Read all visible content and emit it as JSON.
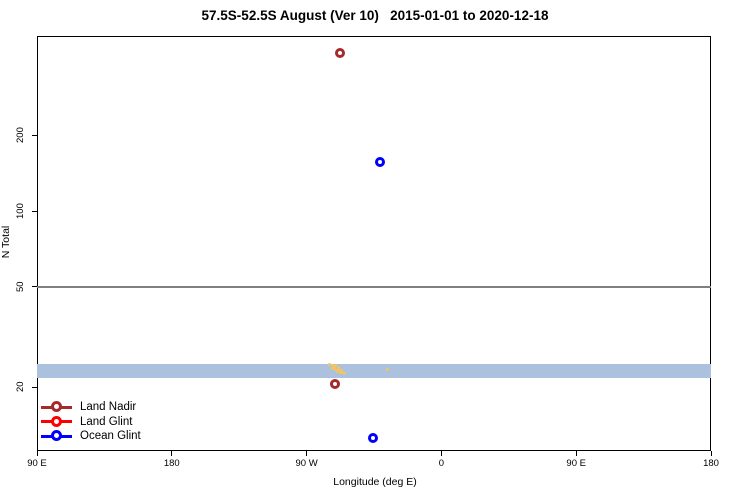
{
  "chart_data": {
    "type": "scatter",
    "title": "57.5S-52.5S August (Ver 10)   2015-01-01 to 2020-12-18",
    "xlabel": "Longitude (deg E)",
    "ylabel": "N Total",
    "x_axis": {
      "lim": [
        90,
        540
      ],
      "ticks": [
        {
          "value": 90,
          "label": "90 E"
        },
        {
          "value": 180,
          "label": "180"
        },
        {
          "value": 270,
          "label": "90 W"
        },
        {
          "value": 360,
          "label": "0"
        },
        {
          "value": 450,
          "label": "90 E"
        },
        {
          "value": 540,
          "label": "180"
        }
      ]
    },
    "y_axis": {
      "scale": "log",
      "lim": [
        11.3,
        494
      ],
      "ticks": [
        {
          "value": 20,
          "label": "20"
        },
        {
          "value": 50,
          "label": "50"
        },
        {
          "value": 100,
          "label": "100"
        },
        {
          "value": 200,
          "label": "200"
        }
      ]
    },
    "reference_line": {
      "y": 50,
      "color": "#7f7f7f"
    },
    "reference_band": {
      "y_min": 21.8,
      "y_max": 24.6,
      "color": "#abc1de"
    },
    "series": [
      {
        "name": "Land Nadir",
        "color": "#a52a2a",
        "symbol": "open-circle",
        "points": [
          {
            "lon": 292.5,
            "n_total": 423
          },
          {
            "lon": 289.0,
            "n_total": 20.5
          }
        ]
      },
      {
        "name": "Land Glint",
        "color": "#ff0000",
        "symbol": "open-circle",
        "points": []
      },
      {
        "name": "Ocean Glint",
        "color": "#0000ff",
        "symbol": "open-circle",
        "points": [
          {
            "lon": 319.0,
            "n_total": 157
          },
          {
            "lon": 314.0,
            "n_total": 12.6
          }
        ]
      }
    ],
    "minor_points": {
      "name": "small-orange-marks",
      "color": "#f2c464",
      "points": [
        {
          "lon": 285.0,
          "n_total": 24.7
        },
        {
          "lon": 287.0,
          "n_total": 24.4
        },
        {
          "lon": 288.3,
          "n_total": 24.2
        },
        {
          "lon": 289.6,
          "n_total": 24.4
        },
        {
          "lon": 291.0,
          "n_total": 24.0
        },
        {
          "lon": 287.6,
          "n_total": 23.8
        },
        {
          "lon": 289.6,
          "n_total": 23.5
        },
        {
          "lon": 291.6,
          "n_total": 23.5
        },
        {
          "lon": 293.0,
          "n_total": 23.3
        },
        {
          "lon": 290.3,
          "n_total": 23.1
        },
        {
          "lon": 292.3,
          "n_total": 22.9
        },
        {
          "lon": 294.3,
          "n_total": 22.9
        },
        {
          "lon": 295.6,
          "n_total": 22.7
        },
        {
          "lon": 323.7,
          "n_total": 23.5
        }
      ]
    },
    "legend": {
      "position": "bottom-left",
      "entries": [
        {
          "label": "Land Nadir",
          "color": "#a52a2a"
        },
        {
          "label": "Land Glint",
          "color": "#ff0000"
        },
        {
          "label": "Ocean Glint",
          "color": "#0000ff"
        }
      ]
    }
  }
}
